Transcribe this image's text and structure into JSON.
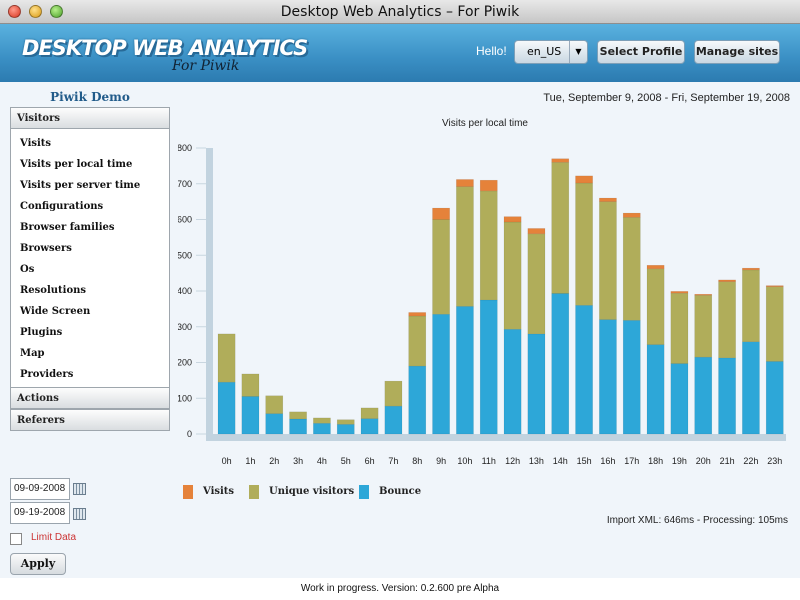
{
  "window": {
    "title": "Desktop Web Analytics – For Piwik"
  },
  "header": {
    "logo_main": "DESKTOP WEB ANALYTICS",
    "logo_sub": "For Piwik",
    "hello": "Hello!",
    "language": "en_US",
    "select_profile": "Select Profile",
    "manage_sites": "Manage sites"
  },
  "site_name": "Piwik Demo",
  "date_range": "Tue, September 9, 2008 - Fri, September 19, 2008",
  "menu": {
    "visitors": "Visitors",
    "items": [
      "Visits",
      "Visits per local time",
      "Visits per server time",
      "Configurations",
      "Browser families",
      "Browsers",
      "Os",
      "Resolutions",
      "Wide Screen",
      "Plugins",
      "Map",
      "Providers"
    ],
    "actions": "Actions",
    "referers": "Referers"
  },
  "filters": {
    "start_date": "09-09-2008",
    "end_date": "09-19-2008",
    "limit_label": "Limit Data",
    "apply": "Apply"
  },
  "timing": "Import XML: 646ms - Processing: 105ms",
  "footer": "Work in progress. Version: 0.2.600 pre Alpha",
  "colors": {
    "visits": "#e5823a",
    "unique": "#b0ad5a",
    "bounce": "#2da7d8"
  },
  "chart_data": {
    "type": "bar",
    "stacked": true,
    "title": "Visits per local time",
    "categories": [
      "0h",
      "1h",
      "2h",
      "3h",
      "4h",
      "5h",
      "6h",
      "7h",
      "8h",
      "9h",
      "10h",
      "11h",
      "12h",
      "13h",
      "14h",
      "15h",
      "16h",
      "17h",
      "18h",
      "19h",
      "20h",
      "21h",
      "22h",
      "23h"
    ],
    "series": [
      {
        "name": "Bounce",
        "values": [
          145,
          105,
          57,
          42,
          30,
          27,
          43,
          78,
          190,
          335,
          357,
          375,
          293,
          280,
          393,
          360,
          320,
          318,
          250,
          197,
          215,
          213,
          258,
          203
        ]
      },
      {
        "name": "Unique visitors",
        "values": [
          135,
          63,
          50,
          20,
          15,
          13,
          30,
          70,
          140,
          265,
          335,
          305,
          300,
          280,
          367,
          342,
          330,
          288,
          212,
          197,
          173,
          213,
          201,
          209
        ]
      },
      {
        "name": "Visits",
        "values": [
          0,
          0,
          0,
          0,
          0,
          0,
          0,
          0,
          10,
          32,
          20,
          30,
          15,
          15,
          10,
          20,
          10,
          12,
          10,
          5,
          3,
          5,
          5,
          3
        ]
      }
    ],
    "legend_order": [
      "Visits",
      "Unique visitors",
      "Bounce"
    ],
    "y_ticks": [
      0,
      100,
      200,
      300,
      400,
      500,
      600,
      700,
      800
    ],
    "ylim": [
      0,
      800
    ],
    "grid": false,
    "legend_position": "bottom"
  }
}
